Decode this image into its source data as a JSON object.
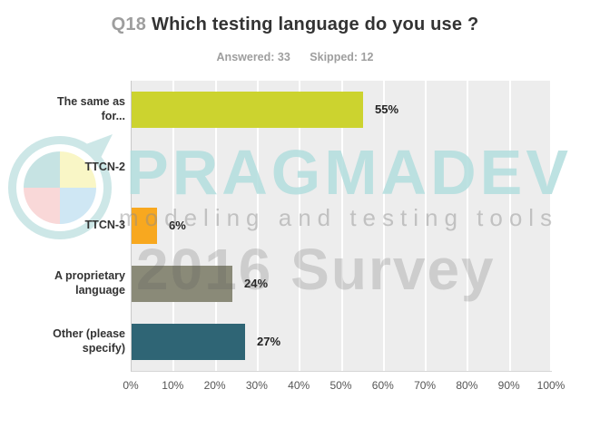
{
  "title": {
    "q": "Q18",
    "text": "Which testing language do you use ?"
  },
  "subtitle": {
    "answered": "Answered: 33",
    "skipped": "Skipped: 12"
  },
  "watermark": {
    "brand": "PRAGMADEV",
    "tagline": "modeling and testing tools",
    "survey": "2016 Survey",
    "brand_color": "#cbe5e5",
    "logo_colors": {
      "ring": "#cde7e7",
      "quadrant_top_left": "#c6e3e3",
      "quadrant_top_right": "#f9f6c6",
      "quadrant_bottom_right": "#cfe7f4",
      "quadrant_bottom_left": "#f9d8d8"
    }
  },
  "chart_data": {
    "type": "bar",
    "orientation": "horizontal",
    "title": "Q18 Which testing language do you use ?",
    "answered": 33,
    "skipped": 12,
    "categories": [
      "The same as for...",
      "TTCN-2",
      "TTCN-3",
      "A proprietary language",
      "Other (please specify)"
    ],
    "display_categories": [
      "The same as\nfor...",
      "TTCN-2",
      "TTCN-3",
      "A proprietary\nlanguage",
      "Other (please\nspecify)"
    ],
    "values": [
      55,
      0,
      6,
      24,
      27
    ],
    "value_labels": [
      "55%",
      "",
      "6%",
      "24%",
      "27%"
    ],
    "bar_colors": [
      "#ccd32f",
      "",
      "#f8a81f",
      "#8a8a78",
      "#2f6575"
    ],
    "xlabel": "",
    "ylabel": "",
    "xlim": [
      0,
      100
    ],
    "x_ticks": [
      "0%",
      "10%",
      "20%",
      "30%",
      "40%",
      "50%",
      "60%",
      "70%",
      "80%",
      "90%",
      "100%"
    ],
    "grid": true,
    "plot_bg": "#ededed",
    "legend": "none"
  }
}
